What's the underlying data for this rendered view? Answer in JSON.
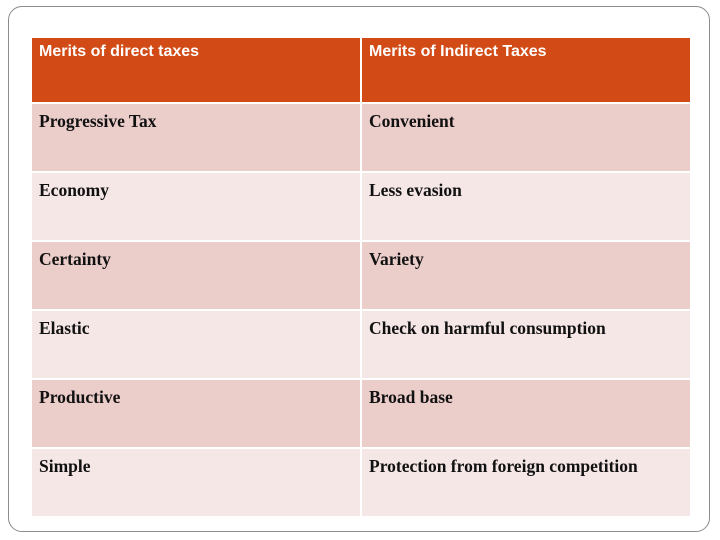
{
  "table": {
    "headers": [
      "Merits of direct taxes",
      "Merits of Indirect Taxes"
    ],
    "rows": [
      [
        "Progressive Tax",
        "Convenient"
      ],
      [
        "Economy",
        "Less evasion"
      ],
      [
        "Certainty",
        "Variety"
      ],
      [
        "Elastic",
        "Check on harmful consumption"
      ],
      [
        "Productive",
        "Broad base"
      ],
      [
        "Simple",
        "Protection from foreign competition"
      ]
    ]
  },
  "colors": {
    "header_bg": "#d24b16",
    "row_dark_bg": "#ebcdca",
    "row_light_bg": "#f5e7e6",
    "frame_border": "#8c8c8c"
  }
}
